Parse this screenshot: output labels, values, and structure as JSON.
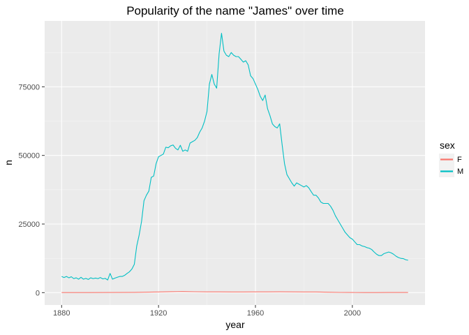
{
  "chart_data": {
    "type": "line",
    "title": "Popularity of the name \"James\" over time",
    "xlabel": "year",
    "ylabel": "n",
    "xlim": [
      1880,
      2023
    ],
    "ylim": [
      0,
      95000
    ],
    "x_ticks": [
      1880,
      1920,
      1960,
      2000
    ],
    "y_ticks": [
      0,
      25000,
      50000,
      75000
    ],
    "y_tick_labels": [
      "0",
      "25000",
      "50000",
      "75000"
    ],
    "grid": true,
    "legend": {
      "title": "sex",
      "position": "right",
      "entries": [
        "F",
        "M"
      ]
    },
    "series": [
      {
        "name": "F",
        "color": "#F8766D",
        "x": [
          1880,
          1890,
          1900,
          1910,
          1920,
          1925,
          1930,
          1935,
          1940,
          1945,
          1950,
          1955,
          1960,
          1965,
          1970,
          1975,
          1980,
          1985,
          1990,
          1995,
          2000,
          2005,
          2010,
          2015,
          2020,
          2023
        ],
        "values": [
          30,
          40,
          50,
          90,
          250,
          360,
          420,
          330,
          280,
          280,
          250,
          250,
          280,
          290,
          320,
          280,
          260,
          240,
          150,
          80,
          50,
          40,
          40,
          50,
          60,
          60
        ]
      },
      {
        "name": "M",
        "color": "#00BFC4",
        "x": [
          1880,
          1881,
          1882,
          1883,
          1884,
          1885,
          1886,
          1887,
          1888,
          1889,
          1890,
          1891,
          1892,
          1893,
          1894,
          1895,
          1896,
          1897,
          1898,
          1899,
          1900,
          1901,
          1902,
          1903,
          1904,
          1905,
          1906,
          1907,
          1908,
          1909,
          1910,
          1911,
          1912,
          1913,
          1914,
          1915,
          1916,
          1917,
          1918,
          1919,
          1920,
          1921,
          1922,
          1923,
          1924,
          1925,
          1926,
          1927,
          1928,
          1929,
          1930,
          1931,
          1932,
          1933,
          1934,
          1935,
          1936,
          1937,
          1938,
          1939,
          1940,
          1941,
          1942,
          1943,
          1944,
          1945,
          1946,
          1947,
          1948,
          1949,
          1950,
          1951,
          1952,
          1953,
          1954,
          1955,
          1956,
          1957,
          1958,
          1959,
          1960,
          1961,
          1962,
          1963,
          1964,
          1965,
          1966,
          1967,
          1968,
          1969,
          1970,
          1971,
          1972,
          1973,
          1974,
          1975,
          1976,
          1977,
          1978,
          1979,
          1980,
          1981,
          1982,
          1983,
          1984,
          1985,
          1986,
          1987,
          1988,
          1989,
          1990,
          1991,
          1992,
          1993,
          1994,
          1995,
          1996,
          1997,
          1998,
          1999,
          2000,
          2001,
          2002,
          2003,
          2004,
          2005,
          2006,
          2007,
          2008,
          2009,
          2010,
          2011,
          2012,
          2013,
          2014,
          2015,
          2016,
          2017,
          2018,
          2019,
          2020,
          2021,
          2022,
          2023
        ],
        "values": [
          5900,
          5500,
          5900,
          5400,
          5800,
          5100,
          5400,
          4900,
          5600,
          4900,
          5200,
          4800,
          5400,
          5100,
          5300,
          5100,
          5500,
          5000,
          5200,
          4600,
          7000,
          4900,
          5300,
          5600,
          5900,
          5900,
          6300,
          7000,
          7600,
          8600,
          10300,
          17000,
          21000,
          26000,
          33500,
          35500,
          37000,
          42000,
          42500,
          47000,
          49500,
          50000,
          50500,
          53000,
          52800,
          53500,
          53800,
          52600,
          52000,
          53700,
          51500,
          52000,
          51500,
          54500,
          55000,
          55500,
          56500,
          58500,
          60000,
          62500,
          66000,
          76000,
          79500,
          76000,
          74500,
          87000,
          94500,
          88000,
          86500,
          86000,
          87500,
          86500,
          86000,
          86000,
          85000,
          84000,
          84500,
          83000,
          79000,
          78000,
          76000,
          74000,
          71500,
          70000,
          72000,
          67000,
          64500,
          61500,
          60500,
          60000,
          61500,
          54000,
          47000,
          43000,
          41500,
          40000,
          38800,
          40000,
          39500,
          39000,
          38500,
          39000,
          38200,
          36800,
          35500,
          35500,
          34500,
          33000,
          32500,
          32500,
          32500,
          31500,
          30000,
          28000,
          26500,
          25000,
          23500,
          22000,
          21000,
          20000,
          19500,
          18500,
          17500,
          17500,
          17000,
          16800,
          16400,
          16200,
          15700,
          14800,
          14000,
          13500,
          13500,
          14200,
          14500,
          14800,
          14500,
          14000,
          13300,
          12800,
          12500,
          12400,
          12000,
          11800
        ]
      }
    ]
  }
}
